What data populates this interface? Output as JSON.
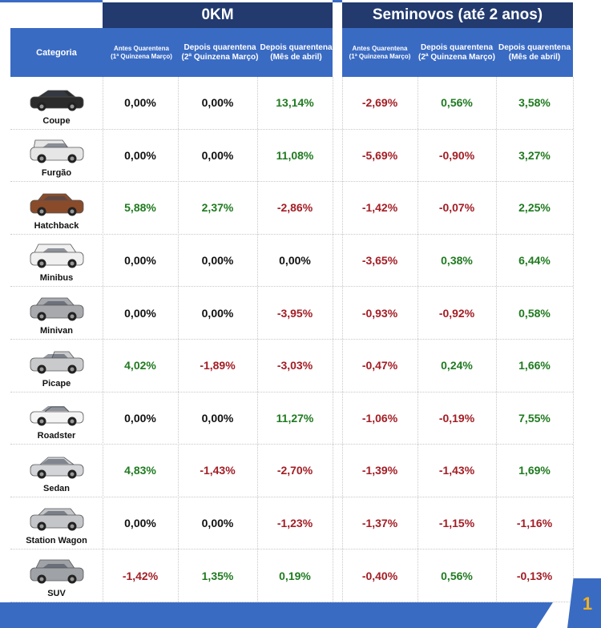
{
  "groups": {
    "okm": "0KM",
    "seminovos": "Seminovos (até 2 anos)"
  },
  "columns": {
    "category": "Categoria",
    "okm": [
      {
        "l1": "Antes Quarentena",
        "l2": "(1ª Quinzena Março)"
      },
      {
        "l1": "Depois quarentena",
        "l2": "(2ª Quinzena Março)"
      },
      {
        "l1": "Depois quarentena",
        "l2": "(Mês de abril)"
      }
    ],
    "seminovos": [
      {
        "l1": "Antes Quarentena",
        "l2": "(1ª Quinzena Março)"
      },
      {
        "l1": "Depois quarentena",
        "l2": "(2ª Quinzena Março)"
      },
      {
        "l1": "Depois quarentena",
        "l2": "(Mês de abril)"
      }
    ]
  },
  "colors": {
    "positive": "#1f7a1f",
    "negative": "#a31d24",
    "neutral": "#111111",
    "header_dark": "#223a6e",
    "header": "#3a6bc3",
    "page_number": "#f2b01e"
  },
  "rows": [
    {
      "category": "Coupe",
      "icon": "coupe-car-icon",
      "values": [
        "0,00%",
        "0,00%",
        "13,14%",
        "-2,69%",
        "0,56%",
        "3,58%"
      ]
    },
    {
      "category": "Furgão",
      "icon": "van-car-icon",
      "values": [
        "0,00%",
        "0,00%",
        "11,08%",
        "-5,69%",
        "-0,90%",
        "3,27%"
      ]
    },
    {
      "category": "Hatchback",
      "icon": "hatchback-car-icon",
      "values": [
        "5,88%",
        "2,37%",
        "-2,86%",
        "-1,42%",
        "-0,07%",
        "2,25%"
      ]
    },
    {
      "category": "Minibus",
      "icon": "minibus-car-icon",
      "values": [
        "0,00%",
        "0,00%",
        "0,00%",
        "-3,65%",
        "0,38%",
        "6,44%"
      ]
    },
    {
      "category": "Minivan",
      "icon": "minivan-car-icon",
      "values": [
        "0,00%",
        "0,00%",
        "-3,95%",
        "-0,93%",
        "-0,92%",
        "0,58%"
      ]
    },
    {
      "category": "Picape",
      "icon": "pickup-car-icon",
      "values": [
        "4,02%",
        "-1,89%",
        "-3,03%",
        "-0,47%",
        "0,24%",
        "1,66%"
      ]
    },
    {
      "category": "Roadster",
      "icon": "roadster-car-icon",
      "values": [
        "0,00%",
        "0,00%",
        "11,27%",
        "-1,06%",
        "-0,19%",
        "7,55%"
      ]
    },
    {
      "category": "Sedan",
      "icon": "sedan-car-icon",
      "values": [
        "4,83%",
        "-1,43%",
        "-2,70%",
        "-1,39%",
        "-1,43%",
        "1,69%"
      ]
    },
    {
      "category": "Station Wagon",
      "icon": "station-wagon-car-icon",
      "values": [
        "0,00%",
        "0,00%",
        "-1,23%",
        "-1,37%",
        "-1,15%",
        "-1,16%"
      ]
    },
    {
      "category": "SUV",
      "icon": "suv-car-icon",
      "values": [
        "-1,42%",
        "1,35%",
        "0,19%",
        "-0,40%",
        "0,56%",
        "-0,13%"
      ]
    }
  ],
  "page_number": "1"
}
